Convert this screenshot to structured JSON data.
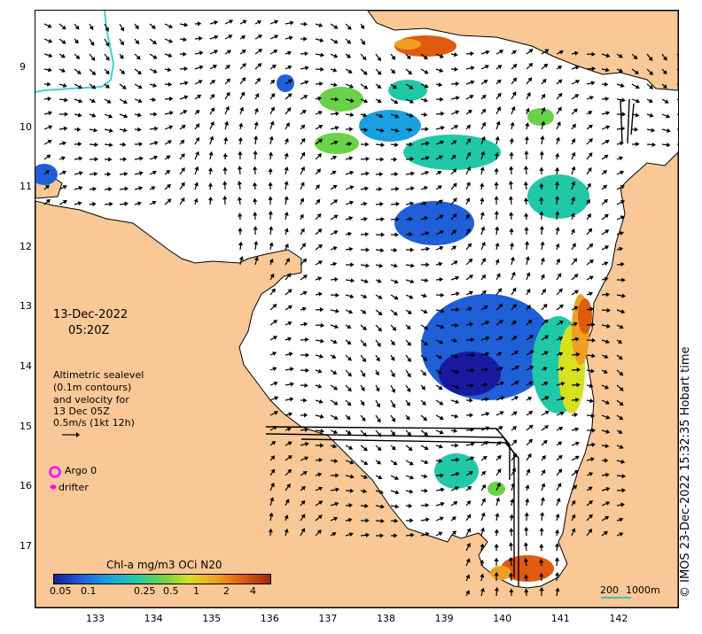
{
  "map": {
    "date_line1": "13-Dec-2022",
    "date_line2": "05:20Z",
    "altimetry": {
      "line1": "Altimetric sealevel",
      "line2": "(0.1m contours)",
      "line3": "and velocity for",
      "line4": "13 Dec 05Z",
      "line5": "0.5m/s (1kt 12h)"
    },
    "legend": {
      "argo_label": "Argo 0",
      "drifter_label": "drifter",
      "argo_color": "#ff00ff",
      "drifter_color": "#ff00ff"
    },
    "colorbar": {
      "title": "Chl-a mg/m3 OCi N20",
      "ticks": [
        "0.05",
        "0.1",
        "0.25",
        "0.5",
        "1",
        "2",
        "4"
      ],
      "colors": [
        "#1a1aa0",
        "#1f5fd8",
        "#1aa0e0",
        "#20c8a8",
        "#6ad24a",
        "#d8e020",
        "#f0a020",
        "#e05a10",
        "#a02808"
      ]
    },
    "scale_bar": {
      "label_a": "200",
      "label_b": "1000m",
      "color": "#40c0c0"
    },
    "watermark": "© IMOS 23-Dec-2022 15:32:35 Hobart time",
    "x_ticks": [
      "133",
      "134",
      "135",
      "136",
      "137",
      "138",
      "139",
      "140",
      "141",
      "142"
    ],
    "y_ticks": [
      "9",
      "10",
      "11",
      "12",
      "13",
      "14",
      "15",
      "16",
      "17"
    ],
    "colors": {
      "land": "#fac896",
      "coast": "#000000",
      "bathy": "#40d0d0"
    }
  }
}
